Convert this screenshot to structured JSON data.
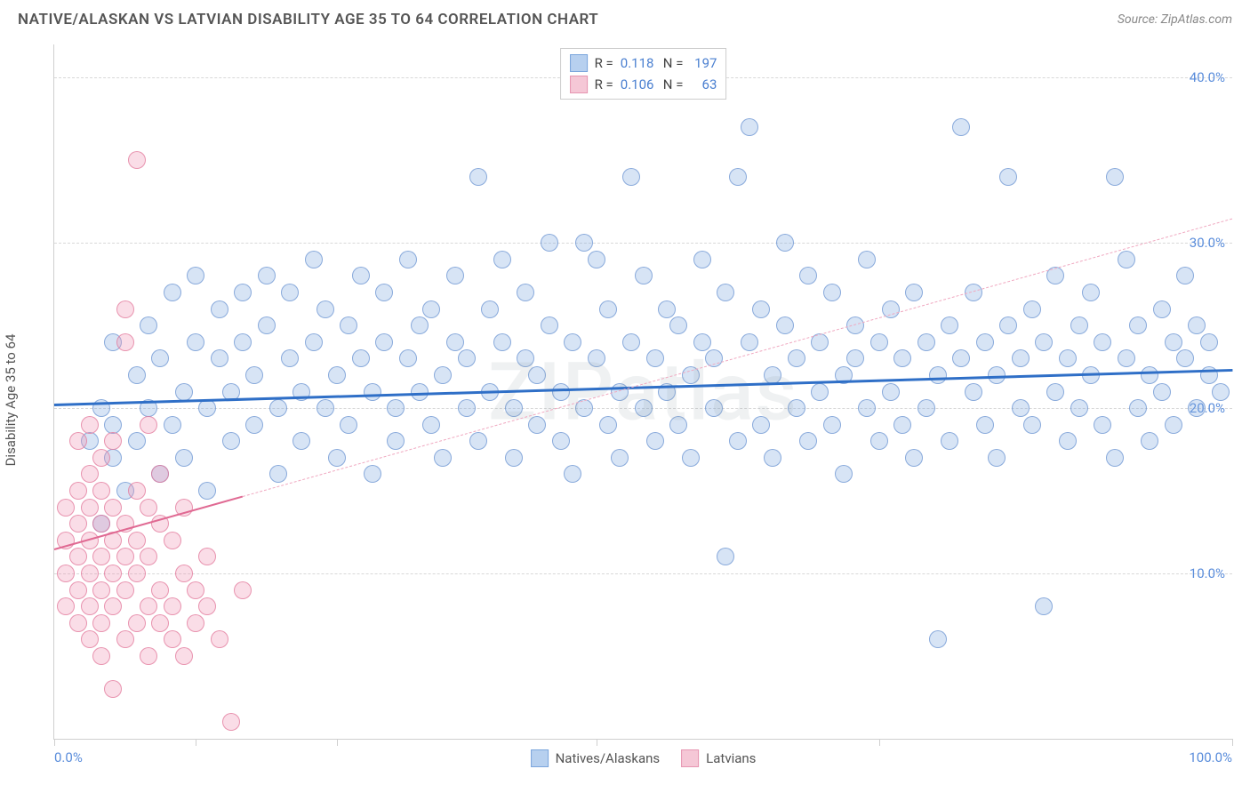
{
  "title": "NATIVE/ALASKAN VS LATVIAN DISABILITY AGE 35 TO 64 CORRELATION CHART",
  "source": "Source: ZipAtlas.com",
  "watermark": "ZIPatlas",
  "y_axis_label": "Disability Age 35 to 64",
  "chart": {
    "type": "scatter",
    "xlim": [
      0,
      100
    ],
    "ylim": [
      0,
      42
    ],
    "x_ticks": [
      0,
      12,
      24,
      46,
      70,
      100
    ],
    "x_tick_labels": {
      "0": "0.0%",
      "100": "100.0%"
    },
    "y_gridlines": [
      10,
      20,
      30,
      40
    ],
    "y_tick_labels": {
      "10": "10.0%",
      "20": "20.0%",
      "30": "30.0%",
      "40": "40.0%"
    },
    "grid_color": "#d8d8d8",
    "axis_color": "#cfcfcf",
    "background_color": "#ffffff",
    "tick_label_color": "#5a8ddb",
    "point_radius": 10,
    "series": [
      {
        "name": "Natives/Alaskans",
        "fill": "rgba(130,170,225,0.32)",
        "stroke": "rgba(110,150,210,0.75)",
        "swatch_fill": "#b7d0ef",
        "swatch_stroke": "#7aa5dc",
        "trend": {
          "x1": 0,
          "y1": 20.3,
          "x2": 100,
          "y2": 22.4,
          "color": "#2f6fc7",
          "width": 3,
          "dash": false
        },
        "stats": {
          "R": "0.118",
          "N": "197"
        },
        "points": [
          [
            3,
            18
          ],
          [
            4,
            13
          ],
          [
            4,
            20
          ],
          [
            5,
            17
          ],
          [
            5,
            24
          ],
          [
            5,
            19
          ],
          [
            6,
            15
          ],
          [
            7,
            22
          ],
          [
            7,
            18
          ],
          [
            8,
            25
          ],
          [
            8,
            20
          ],
          [
            9,
            16
          ],
          [
            9,
            23
          ],
          [
            10,
            27
          ],
          [
            10,
            19
          ],
          [
            11,
            21
          ],
          [
            11,
            17
          ],
          [
            12,
            24
          ],
          [
            12,
            28
          ],
          [
            13,
            20
          ],
          [
            13,
            15
          ],
          [
            14,
            23
          ],
          [
            14,
            26
          ],
          [
            15,
            18
          ],
          [
            15,
            21
          ],
          [
            16,
            27
          ],
          [
            16,
            24
          ],
          [
            17,
            19
          ],
          [
            17,
            22
          ],
          [
            18,
            25
          ],
          [
            18,
            28
          ],
          [
            19,
            20
          ],
          [
            19,
            16
          ],
          [
            20,
            23
          ],
          [
            20,
            27
          ],
          [
            21,
            21
          ],
          [
            21,
            18
          ],
          [
            22,
            24
          ],
          [
            22,
            29
          ],
          [
            23,
            20
          ],
          [
            23,
            26
          ],
          [
            24,
            17
          ],
          [
            24,
            22
          ],
          [
            25,
            25
          ],
          [
            25,
            19
          ],
          [
            26,
            28
          ],
          [
            26,
            23
          ],
          [
            27,
            21
          ],
          [
            27,
            16
          ],
          [
            28,
            24
          ],
          [
            28,
            27
          ],
          [
            29,
            20
          ],
          [
            29,
            18
          ],
          [
            30,
            23
          ],
          [
            30,
            29
          ],
          [
            31,
            25
          ],
          [
            31,
            21
          ],
          [
            32,
            19
          ],
          [
            32,
            26
          ],
          [
            33,
            22
          ],
          [
            33,
            17
          ],
          [
            34,
            24
          ],
          [
            34,
            28
          ],
          [
            35,
            20
          ],
          [
            35,
            23
          ],
          [
            36,
            34
          ],
          [
            36,
            18
          ],
          [
            37,
            26
          ],
          [
            37,
            21
          ],
          [
            38,
            29
          ],
          [
            38,
            24
          ],
          [
            39,
            20
          ],
          [
            39,
            17
          ],
          [
            40,
            23
          ],
          [
            40,
            27
          ],
          [
            41,
            22
          ],
          [
            41,
            19
          ],
          [
            42,
            25
          ],
          [
            42,
            30
          ],
          [
            43,
            21
          ],
          [
            43,
            18
          ],
          [
            44,
            24
          ],
          [
            44,
            16
          ],
          [
            45,
            30
          ],
          [
            45,
            20
          ],
          [
            46,
            23
          ],
          [
            46,
            29
          ],
          [
            47,
            19
          ],
          [
            47,
            26
          ],
          [
            48,
            21
          ],
          [
            48,
            17
          ],
          [
            49,
            24
          ],
          [
            49,
            34
          ],
          [
            50,
            20
          ],
          [
            50,
            28
          ],
          [
            51,
            23
          ],
          [
            51,
            18
          ],
          [
            52,
            26
          ],
          [
            52,
            21
          ],
          [
            53,
            19
          ],
          [
            53,
            25
          ],
          [
            54,
            22
          ],
          [
            54,
            17
          ],
          [
            55,
            24
          ],
          [
            55,
            29
          ],
          [
            56,
            20
          ],
          [
            56,
            23
          ],
          [
            57,
            11
          ],
          [
            57,
            27
          ],
          [
            58,
            34
          ],
          [
            58,
            18
          ],
          [
            59,
            24
          ],
          [
            59,
            37
          ],
          [
            60,
            19
          ],
          [
            60,
            26
          ],
          [
            61,
            22
          ],
          [
            61,
            17
          ],
          [
            62,
            25
          ],
          [
            62,
            30
          ],
          [
            63,
            20
          ],
          [
            63,
            23
          ],
          [
            64,
            18
          ],
          [
            64,
            28
          ],
          [
            65,
            21
          ],
          [
            65,
            24
          ],
          [
            66,
            19
          ],
          [
            66,
            27
          ],
          [
            67,
            22
          ],
          [
            67,
            16
          ],
          [
            68,
            25
          ],
          [
            68,
            23
          ],
          [
            69,
            20
          ],
          [
            69,
            29
          ],
          [
            70,
            18
          ],
          [
            70,
            24
          ],
          [
            71,
            26
          ],
          [
            71,
            21
          ],
          [
            72,
            19
          ],
          [
            72,
            23
          ],
          [
            73,
            27
          ],
          [
            73,
            17
          ],
          [
            74,
            24
          ],
          [
            74,
            20
          ],
          [
            75,
            6
          ],
          [
            75,
            22
          ],
          [
            76,
            25
          ],
          [
            76,
            18
          ],
          [
            77,
            23
          ],
          [
            77,
            37
          ],
          [
            78,
            21
          ],
          [
            78,
            27
          ],
          [
            79,
            19
          ],
          [
            79,
            24
          ],
          [
            80,
            22
          ],
          [
            80,
            17
          ],
          [
            81,
            25
          ],
          [
            81,
            34
          ],
          [
            82,
            20
          ],
          [
            82,
            23
          ],
          [
            83,
            26
          ],
          [
            83,
            19
          ],
          [
            84,
            24
          ],
          [
            84,
            8
          ],
          [
            85,
            21
          ],
          [
            85,
            28
          ],
          [
            86,
            18
          ],
          [
            86,
            23
          ],
          [
            87,
            25
          ],
          [
            87,
            20
          ],
          [
            88,
            27
          ],
          [
            88,
            22
          ],
          [
            89,
            19
          ],
          [
            89,
            24
          ],
          [
            90,
            34
          ],
          [
            90,
            17
          ],
          [
            91,
            23
          ],
          [
            91,
            29
          ],
          [
            92,
            20
          ],
          [
            92,
            25
          ],
          [
            93,
            22
          ],
          [
            93,
            18
          ],
          [
            94,
            26
          ],
          [
            94,
            21
          ],
          [
            95,
            24
          ],
          [
            95,
            19
          ],
          [
            96,
            23
          ],
          [
            96,
            28
          ],
          [
            97,
            20
          ],
          [
            97,
            25
          ],
          [
            98,
            22
          ],
          [
            98,
            24
          ],
          [
            99,
            21
          ]
        ]
      },
      {
        "name": "Latvians",
        "fill": "rgba(240,150,180,0.32)",
        "stroke": "rgba(225,120,155,0.75)",
        "swatch_fill": "#f5c7d6",
        "swatch_stroke": "#e695b1",
        "trend": {
          "x1": 0,
          "y1": 11.5,
          "x2": 16,
          "y2": 14.7,
          "color": "#e06a93",
          "width": 2.5,
          "dash": false
        },
        "trend_ext": {
          "x1": 16,
          "y1": 14.7,
          "x2": 100,
          "y2": 31.5,
          "color": "#f0a8c0",
          "width": 1.5,
          "dash": true
        },
        "stats": {
          "R": "0.106",
          "N": "63"
        },
        "points": [
          [
            1,
            12
          ],
          [
            1,
            10
          ],
          [
            1,
            14
          ],
          [
            1,
            8
          ],
          [
            2,
            11
          ],
          [
            2,
            15
          ],
          [
            2,
            9
          ],
          [
            2,
            13
          ],
          [
            2,
            7
          ],
          [
            2,
            18
          ],
          [
            3,
            12
          ],
          [
            3,
            16
          ],
          [
            3,
            10
          ],
          [
            3,
            14
          ],
          [
            3,
            6
          ],
          [
            3,
            19
          ],
          [
            3,
            8
          ],
          [
            4,
            13
          ],
          [
            4,
            11
          ],
          [
            4,
            17
          ],
          [
            4,
            9
          ],
          [
            4,
            15
          ],
          [
            4,
            7
          ],
          [
            4,
            5
          ],
          [
            5,
            12
          ],
          [
            5,
            14
          ],
          [
            5,
            10
          ],
          [
            5,
            18
          ],
          [
            5,
            8
          ],
          [
            5,
            3
          ],
          [
            6,
            13
          ],
          [
            6,
            6
          ],
          [
            6,
            11
          ],
          [
            6,
            26
          ],
          [
            6,
            9
          ],
          [
            6,
            24
          ],
          [
            7,
            12
          ],
          [
            7,
            7
          ],
          [
            7,
            15
          ],
          [
            7,
            10
          ],
          [
            7,
            35
          ],
          [
            8,
            14
          ],
          [
            8,
            8
          ],
          [
            8,
            19
          ],
          [
            8,
            11
          ],
          [
            8,
            5
          ],
          [
            9,
            13
          ],
          [
            9,
            9
          ],
          [
            9,
            16
          ],
          [
            9,
            7
          ],
          [
            10,
            12
          ],
          [
            10,
            8
          ],
          [
            10,
            6
          ],
          [
            11,
            14
          ],
          [
            11,
            10
          ],
          [
            11,
            5
          ],
          [
            12,
            9
          ],
          [
            12,
            7
          ],
          [
            13,
            8
          ],
          [
            13,
            11
          ],
          [
            14,
            6
          ],
          [
            15,
            1
          ],
          [
            16,
            9
          ]
        ]
      }
    ]
  },
  "legend_top": {
    "rows": [
      {
        "swatch_fill": "#b7d0ef",
        "swatch_stroke": "#7aa5dc",
        "r_label": "R =",
        "r_val": "0.118",
        "n_label": "N =",
        "n_val": "197"
      },
      {
        "swatch_fill": "#f5c7d6",
        "swatch_stroke": "#e695b1",
        "r_label": "R =",
        "r_val": "0.106",
        "n_label": "N =",
        "n_val": "63"
      }
    ]
  },
  "legend_bottom": {
    "items": [
      {
        "swatch_fill": "#b7d0ef",
        "swatch_stroke": "#7aa5dc",
        "label": "Natives/Alaskans"
      },
      {
        "swatch_fill": "#f5c7d6",
        "swatch_stroke": "#e695b1",
        "label": "Latvians"
      }
    ]
  }
}
